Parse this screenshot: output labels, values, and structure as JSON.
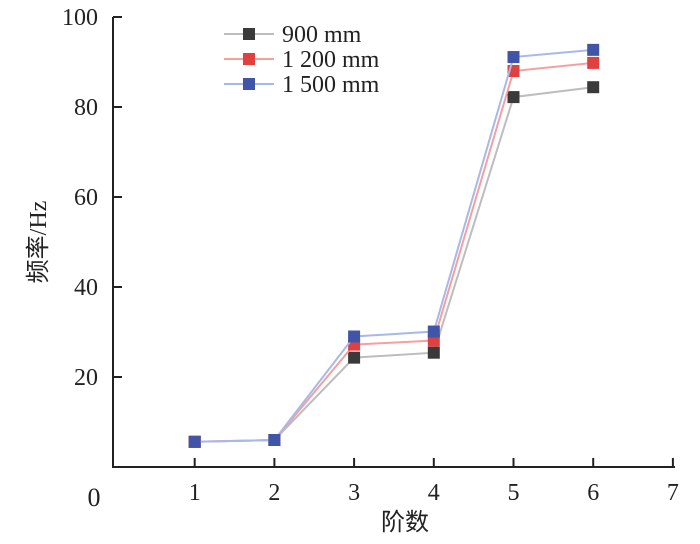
{
  "chart_data": {
    "type": "line",
    "title": "",
    "xlabel": "阶数",
    "ylabel": "频率/Hz",
    "x": [
      1,
      2,
      3,
      4,
      5,
      6
    ],
    "xlim": [
      0,
      7
    ],
    "ylim": [
      0,
      100
    ],
    "xticks": [
      1,
      2,
      3,
      4,
      5,
      6,
      7
    ],
    "yticks": [
      20,
      40,
      60,
      80,
      100
    ],
    "origin_label": "0",
    "grid": false,
    "legend_position": "top-left",
    "series": [
      {
        "name": "900 mm",
        "color": "#3a3a3a",
        "line_color": "#bdbdbd",
        "values": [
          5.6,
          6.0,
          24.3,
          25.4,
          82.2,
          84.4
        ]
      },
      {
        "name": "1 200 mm",
        "color": "#e04040",
        "line_color": "#f5a0a0",
        "values": [
          5.6,
          6.0,
          27.2,
          28.1,
          88.0,
          89.8
        ]
      },
      {
        "name": "1 500 mm",
        "color": "#4055a8",
        "line_color": "#a8b8e8",
        "values": [
          5.6,
          6.0,
          29.0,
          30.1,
          91.1,
          92.7
        ]
      }
    ]
  }
}
